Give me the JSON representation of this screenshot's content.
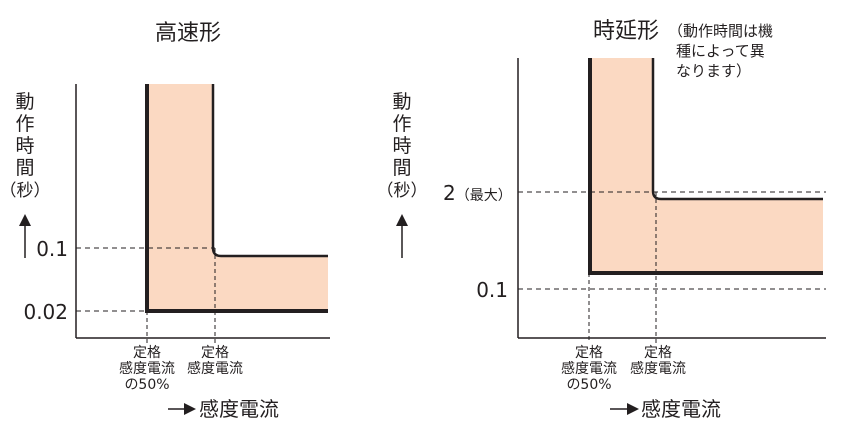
{
  "colors": {
    "band_fill": "#fbd9c2",
    "ink": "#231f20"
  },
  "left_chart": {
    "title": "高速形",
    "ylabel_chars": [
      "動",
      "作",
      "時",
      "間",
      "（秒）"
    ],
    "y_ticks": [
      "0.1",
      "0.02"
    ],
    "x_ticks": [
      {
        "lines": [
          "定格",
          "感度電流",
          "の50%"
        ]
      },
      {
        "lines": [
          "定格",
          "感度電流"
        ]
      }
    ],
    "xlabel": "感度電流"
  },
  "right_chart": {
    "title": "時延形",
    "note_lines": [
      "（動作時間は機",
      "種によって異",
      "なります）"
    ],
    "ylabel_chars": [
      "動",
      "作",
      "時",
      "間",
      "（秒）"
    ],
    "y_tick_max_num": "2",
    "y_tick_max_suffix": "（最大）",
    "y_tick_min": "0.1",
    "x_ticks": [
      {
        "lines": [
          "定格",
          "感度電流",
          "の50%"
        ]
      },
      {
        "lines": [
          "定格",
          "感度電流"
        ]
      }
    ],
    "xlabel": "感度電流"
  }
}
